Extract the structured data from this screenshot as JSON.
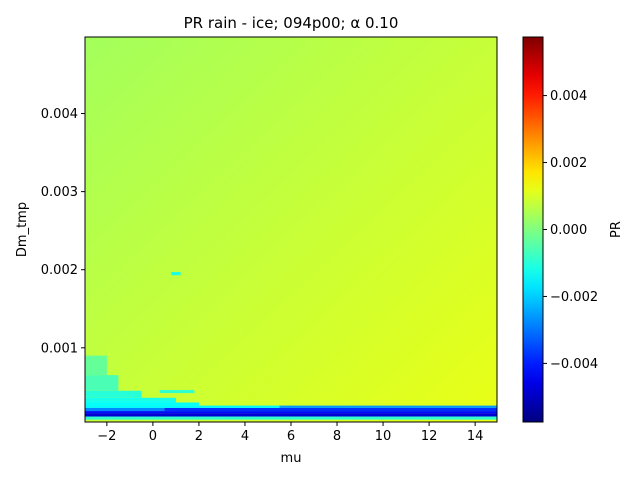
{
  "chart_data": {
    "type": "heatmap",
    "title": "PR rain - ice; 094p00; α 0.10",
    "xlabel": "mu",
    "ylabel": "Dm_tmp",
    "colorbar_label": "PR",
    "colormap": "jet",
    "xlim": [
      -2.95,
      14.95
    ],
    "ylim": [
      5e-05,
      0.00498
    ],
    "clim": [
      -0.00575,
      0.00575
    ],
    "x_ticks": [
      -2,
      0,
      2,
      4,
      6,
      8,
      10,
      12,
      14
    ],
    "x_tick_labels": [
      "−2",
      "0",
      "2",
      "4",
      "6",
      "8",
      "10",
      "12",
      "14"
    ],
    "y_ticks": [
      0.001,
      0.002,
      0.003,
      0.004
    ],
    "y_tick_labels": [
      "0.001",
      "0.002",
      "0.003",
      "0.004"
    ],
    "colorbar_ticks": [
      -0.004,
      -0.002,
      0.0,
      0.002,
      0.004
    ],
    "colorbar_tick_labels": [
      "−0.004",
      "−0.002",
      "0.000",
      "0.002",
      "0.004"
    ],
    "background_value_range": [
      0.0004,
      0.0012
    ],
    "regions": [
      {
        "x": [
          -2.95,
          14.95
        ],
        "y": [
          0.00012,
          0.00016
        ],
        "value": -0.0048
      },
      {
        "x": [
          -2.95,
          14.95
        ],
        "y": [
          0.00016,
          0.00019
        ],
        "value": -0.0042
      },
      {
        "x": [
          0.5,
          14.95
        ],
        "y": [
          0.00019,
          0.00023
        ],
        "value": -0.0038
      },
      {
        "x": [
          -2.95,
          0.5
        ],
        "y": [
          0.00019,
          0.00023
        ],
        "value": -0.0028
      },
      {
        "x": [
          5.5,
          14.95
        ],
        "y": [
          0.00023,
          0.00026
        ],
        "value": -0.0026
      },
      {
        "x": [
          -2.95,
          5.5
        ],
        "y": [
          0.00023,
          0.00026
        ],
        "value": -0.0015
      },
      {
        "x": [
          -2.95,
          14.95
        ],
        "y": [
          8e-05,
          0.00012
        ],
        "value": -0.0009
      },
      {
        "x": [
          -2.95,
          2.0
        ],
        "y": [
          0.00026,
          0.0003
        ],
        "value": -0.0014
      },
      {
        "x": [
          -2.95,
          1.0
        ],
        "y": [
          0.0003,
          0.00036
        ],
        "value": -0.0012
      },
      {
        "x": [
          -2.95,
          -0.5
        ],
        "y": [
          0.00036,
          0.00045
        ],
        "value": -0.001
      },
      {
        "x": [
          0.3,
          1.8
        ],
        "y": [
          0.00042,
          0.00046
        ],
        "value": -0.0009
      },
      {
        "x": [
          -2.95,
          -1.5
        ],
        "y": [
          0.00045,
          0.00065
        ],
        "value": -0.0006
      },
      {
        "x": [
          -2.95,
          -2.0
        ],
        "y": [
          0.00065,
          0.0009
        ],
        "value": -0.0003
      },
      {
        "x": [
          0.8,
          1.2
        ],
        "y": [
          0.00193,
          0.00197
        ],
        "value": -0.0012
      }
    ]
  }
}
